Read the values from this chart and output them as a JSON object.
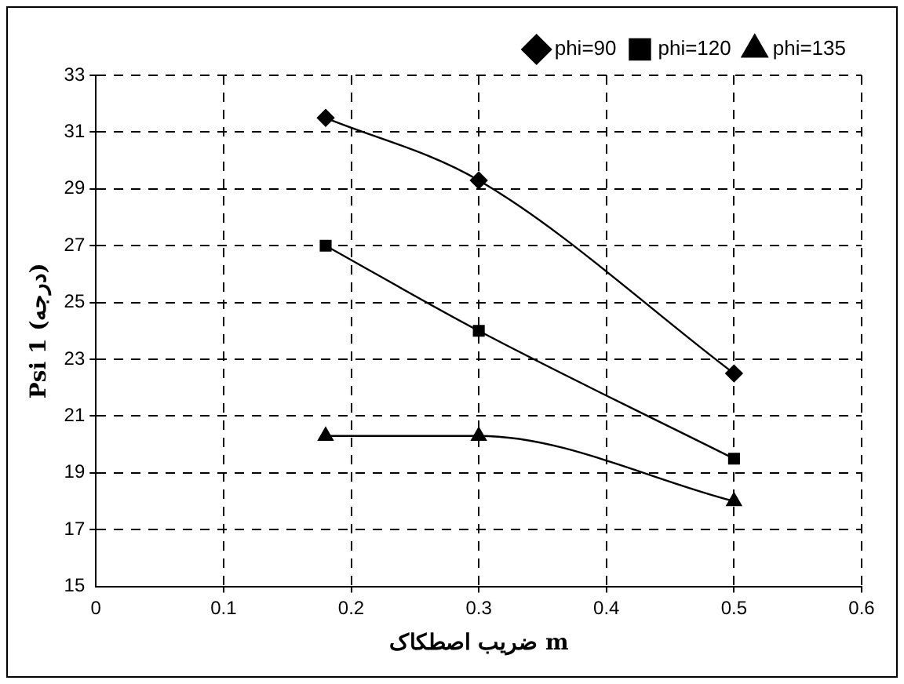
{
  "chart_data": {
    "type": "line",
    "xlabel": "ضریب اصطکاک m",
    "ylabel": "Psi 1 (درجه)",
    "x": [
      0.18,
      0.3,
      0.5
    ],
    "series": [
      {
        "name": "phi=90",
        "color": "#000000",
        "marker": "diamond",
        "values": [
          31.5,
          29.3,
          22.5
        ]
      },
      {
        "name": "phi=120",
        "color": "#000000",
        "marker": "square",
        "values": [
          27,
          24,
          19.5
        ]
      },
      {
        "name": "phi=135",
        "color": "#000000",
        "marker": "triangle",
        "values": [
          20.3,
          20.3,
          18
        ]
      }
    ],
    "xlim": [
      0,
      0.6
    ],
    "xticks": [
      0,
      0.1,
      0.2,
      0.3,
      0.4,
      0.5,
      0.6
    ],
    "ylim": [
      15,
      33
    ],
    "yticks": [
      15,
      17,
      19,
      21,
      23,
      25,
      27,
      29,
      31,
      33
    ],
    "grid": true,
    "legend": "top right",
    "line_style": "solid"
  }
}
